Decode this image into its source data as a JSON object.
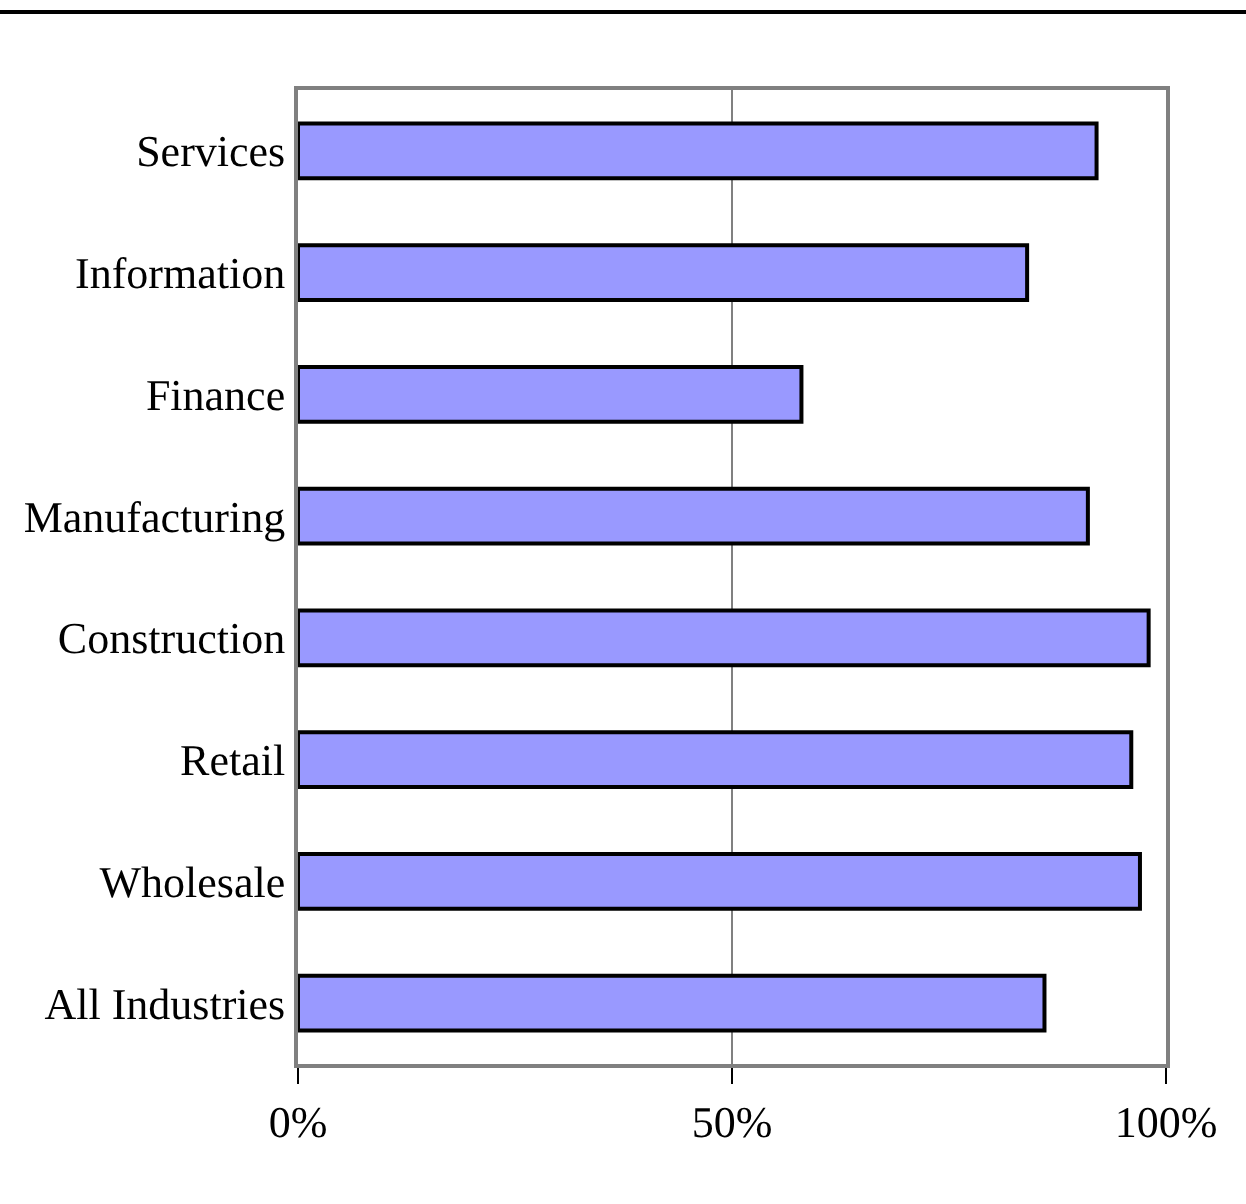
{
  "chart_data": {
    "type": "bar",
    "orientation": "horizontal",
    "categories": [
      "Services",
      "Information",
      "Finance",
      "Manufacturing",
      "Construction",
      "Retail",
      "Wholesale",
      "All Industries"
    ],
    "values": [
      92,
      84,
      58,
      91,
      98,
      96,
      97,
      86
    ],
    "color": "#9999ff",
    "xlim": [
      0,
      100
    ],
    "xticks": [
      {
        "value": 0,
        "label": "0%"
      },
      {
        "value": 50,
        "label": "50%"
      },
      {
        "value": 100,
        "label": "100%"
      }
    ],
    "grid": "x",
    "legend": false
  }
}
